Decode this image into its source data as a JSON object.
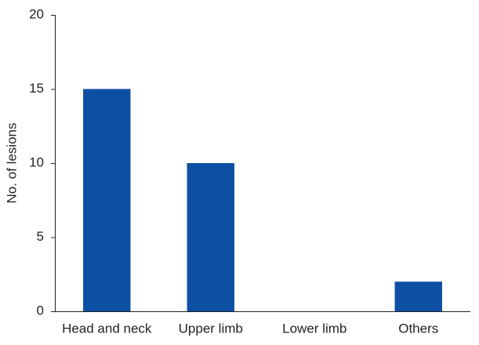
{
  "chart_data": {
    "type": "bar",
    "y_label": "No. of lesions",
    "categories": [
      "Head and neck",
      "Upper limb",
      "Lower limb",
      "Others"
    ],
    "values": [
      15,
      10,
      0,
      2
    ],
    "color": "#0d4fa3",
    "ylim": [
      0,
      20
    ],
    "yticks": [
      0,
      5,
      10,
      15,
      20
    ],
    "grid": false
  }
}
